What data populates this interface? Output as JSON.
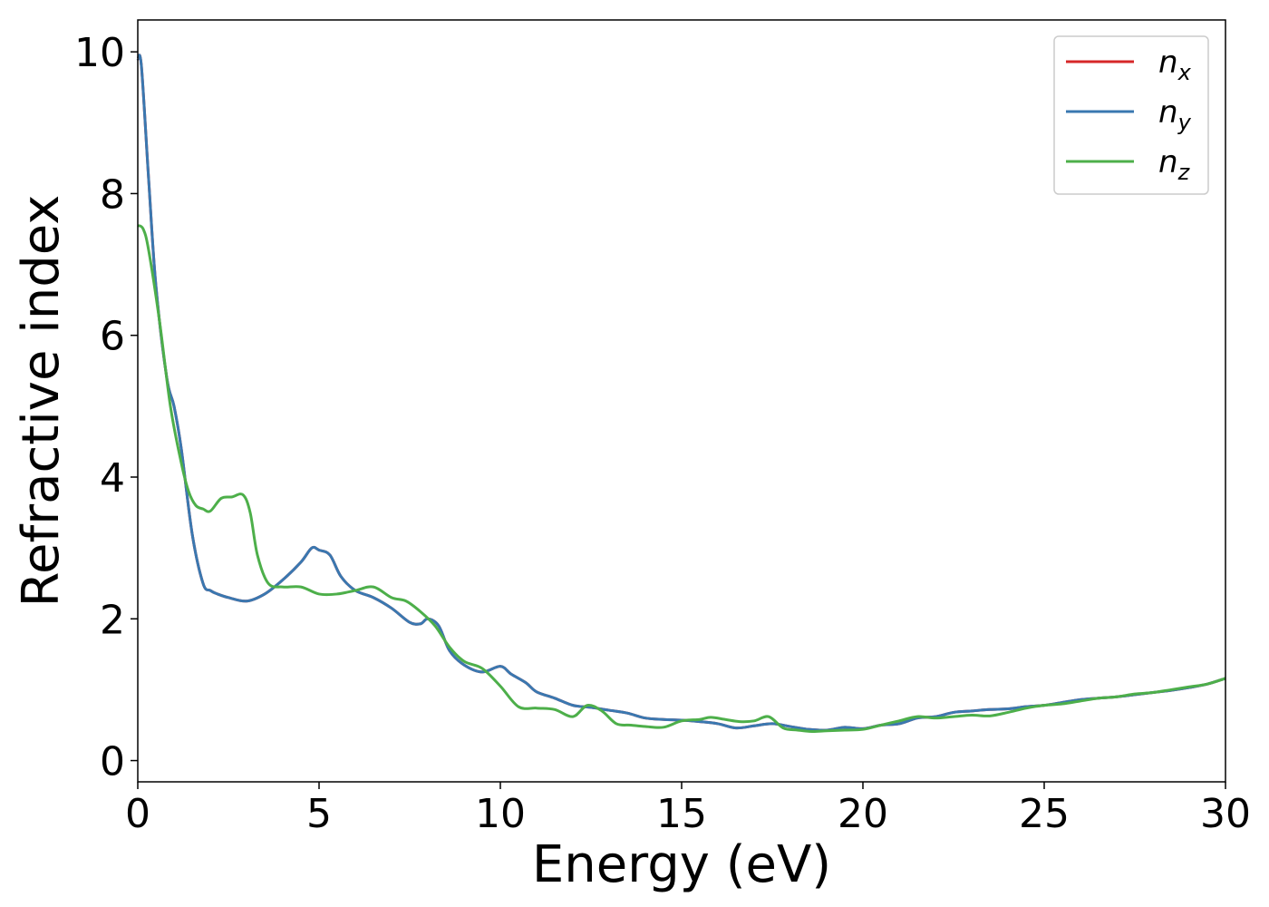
{
  "chart_data": {
    "type": "line",
    "xlabel": "Energy (eV)",
    "ylabel": "Refractive index",
    "xlim": [
      0,
      30
    ],
    "ylim": [
      -0.3,
      10.45
    ],
    "xticks": [
      0,
      5,
      10,
      15,
      20,
      25,
      30
    ],
    "xtick_labels": [
      "0",
      "5",
      "10",
      "15",
      "20",
      "25",
      "30"
    ],
    "yticks": [
      0,
      2,
      4,
      6,
      8,
      10
    ],
    "ytick_labels": [
      "0",
      "2",
      "4",
      "6",
      "8",
      "10"
    ],
    "grid": false,
    "legend_position": "top-right",
    "series": [
      {
        "name": "n_x",
        "legend_base": "n",
        "legend_sub": "x",
        "color": "#d62728",
        "x": [
          0,
          0.1,
          0.3,
          0.5,
          0.8,
          1.0,
          1.2,
          1.5,
          1.8,
          2.0,
          2.2,
          2.5,
          3.0,
          3.5,
          4.0,
          4.5,
          4.8,
          5.0,
          5.3,
          5.6,
          6.0,
          6.5,
          7.0,
          7.5,
          7.8,
          8.0,
          8.3,
          8.6,
          9.0,
          9.5,
          10.0,
          10.3,
          10.7,
          11.0,
          11.5,
          12.0,
          12.5,
          13.0,
          13.5,
          14.0,
          14.5,
          15.0,
          15.5,
          16.0,
          16.5,
          17.0,
          17.5,
          18.0,
          18.5,
          19.0,
          19.5,
          20.0,
          20.5,
          21.0,
          21.5,
          22.0,
          22.5,
          23.0,
          23.5,
          24.0,
          24.5,
          25.0,
          25.5,
          26.0,
          26.5,
          27.0,
          27.5,
          28.0,
          28.5,
          29.0,
          29.5,
          30.0
        ],
        "y": [
          9.9,
          9.8,
          8.2,
          6.7,
          5.4,
          5.0,
          4.4,
          3.2,
          2.5,
          2.4,
          2.35,
          2.3,
          2.25,
          2.35,
          2.55,
          2.8,
          3.0,
          2.97,
          2.9,
          2.6,
          2.4,
          2.3,
          2.15,
          1.95,
          1.93,
          2.0,
          1.9,
          1.55,
          1.35,
          1.25,
          1.33,
          1.22,
          1.1,
          0.97,
          0.88,
          0.78,
          0.75,
          0.71,
          0.67,
          0.6,
          0.58,
          0.57,
          0.55,
          0.52,
          0.46,
          0.49,
          0.52,
          0.48,
          0.44,
          0.43,
          0.47,
          0.45,
          0.5,
          0.52,
          0.6,
          0.62,
          0.68,
          0.7,
          0.72,
          0.73,
          0.76,
          0.78,
          0.82,
          0.86,
          0.88,
          0.9,
          0.93,
          0.96,
          0.99,
          1.03,
          1.08,
          1.16
        ]
      },
      {
        "name": "n_y",
        "legend_base": "n",
        "legend_sub": "y",
        "color": "#3a78b0",
        "x": [
          0,
          0.1,
          0.3,
          0.5,
          0.8,
          1.0,
          1.2,
          1.5,
          1.8,
          2.0,
          2.2,
          2.5,
          3.0,
          3.5,
          4.0,
          4.5,
          4.8,
          5.0,
          5.3,
          5.6,
          6.0,
          6.5,
          7.0,
          7.5,
          7.8,
          8.0,
          8.3,
          8.6,
          9.0,
          9.5,
          10.0,
          10.3,
          10.7,
          11.0,
          11.5,
          12.0,
          12.5,
          13.0,
          13.5,
          14.0,
          14.5,
          15.0,
          15.5,
          16.0,
          16.5,
          17.0,
          17.5,
          18.0,
          18.5,
          19.0,
          19.5,
          20.0,
          20.5,
          21.0,
          21.5,
          22.0,
          22.5,
          23.0,
          23.5,
          24.0,
          24.5,
          25.0,
          25.5,
          26.0,
          26.5,
          27.0,
          27.5,
          28.0,
          28.5,
          29.0,
          29.5,
          30.0
        ],
        "y": [
          9.9,
          9.8,
          8.2,
          6.7,
          5.4,
          5.0,
          4.4,
          3.2,
          2.5,
          2.4,
          2.35,
          2.3,
          2.25,
          2.35,
          2.55,
          2.8,
          3.0,
          2.97,
          2.9,
          2.6,
          2.4,
          2.3,
          2.15,
          1.95,
          1.93,
          2.0,
          1.9,
          1.55,
          1.35,
          1.25,
          1.33,
          1.22,
          1.1,
          0.97,
          0.88,
          0.78,
          0.75,
          0.71,
          0.67,
          0.6,
          0.58,
          0.57,
          0.55,
          0.52,
          0.46,
          0.49,
          0.52,
          0.48,
          0.44,
          0.43,
          0.47,
          0.45,
          0.5,
          0.52,
          0.6,
          0.62,
          0.68,
          0.7,
          0.72,
          0.73,
          0.76,
          0.78,
          0.82,
          0.86,
          0.88,
          0.9,
          0.93,
          0.96,
          0.99,
          1.03,
          1.08,
          1.16
        ]
      },
      {
        "name": "n_z",
        "legend_base": "n",
        "legend_sub": "z",
        "color": "#4daf4a",
        "x": [
          0,
          0.15,
          0.3,
          0.6,
          0.9,
          1.2,
          1.4,
          1.6,
          1.8,
          2.0,
          2.3,
          2.6,
          2.9,
          3.1,
          3.3,
          3.6,
          4.0,
          4.5,
          5.0,
          5.5,
          6.0,
          6.5,
          7.0,
          7.4,
          7.8,
          8.2,
          8.6,
          9.0,
          9.5,
          10.0,
          10.5,
          11.0,
          11.5,
          12.0,
          12.4,
          12.8,
          13.2,
          13.6,
          14.0,
          14.5,
          15.0,
          15.5,
          15.8,
          16.2,
          16.6,
          17.0,
          17.4,
          17.8,
          18.2,
          18.6,
          19.0,
          19.5,
          20.0,
          20.5,
          21.0,
          21.5,
          22.0,
          22.5,
          23.0,
          23.5,
          24.0,
          24.5,
          25.0,
          25.5,
          26.0,
          26.5,
          27.0,
          27.5,
          28.0,
          28.5,
          29.0,
          29.5,
          30.0
        ],
        "y": [
          7.55,
          7.5,
          7.2,
          6.2,
          5.0,
          4.2,
          3.8,
          3.6,
          3.55,
          3.52,
          3.7,
          3.72,
          3.75,
          3.5,
          2.9,
          2.5,
          2.45,
          2.45,
          2.35,
          2.35,
          2.4,
          2.45,
          2.3,
          2.25,
          2.1,
          1.9,
          1.6,
          1.4,
          1.3,
          1.05,
          0.76,
          0.74,
          0.72,
          0.62,
          0.78,
          0.7,
          0.52,
          0.5,
          0.48,
          0.47,
          0.56,
          0.58,
          0.61,
          0.58,
          0.55,
          0.56,
          0.62,
          0.46,
          0.43,
          0.41,
          0.42,
          0.43,
          0.44,
          0.5,
          0.56,
          0.62,
          0.6,
          0.62,
          0.64,
          0.63,
          0.68,
          0.74,
          0.78,
          0.8,
          0.84,
          0.88,
          0.9,
          0.94,
          0.96,
          1.0,
          1.04,
          1.08,
          1.16
        ]
      }
    ]
  }
}
